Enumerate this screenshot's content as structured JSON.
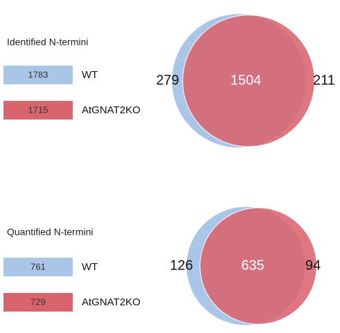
{
  "chart_data": [
    {
      "type": "venn",
      "title": "Identified N-termini",
      "sets": [
        {
          "name": "WT",
          "color": "#a9c5e8",
          "total": 1783
        },
        {
          "name": "AtGNAT2KO",
          "color": "#d9646e",
          "total": 1715
        }
      ],
      "only_first": 279,
      "overlap": 1504,
      "only_second": 211
    },
    {
      "type": "venn",
      "title": "Quantified N-termini",
      "sets": [
        {
          "name": "WT",
          "color": "#a9c5e8",
          "total": 761
        },
        {
          "name": "AtGNAT2KO",
          "color": "#d9646e",
          "total": 729
        }
      ],
      "only_first": 126,
      "overlap": 635,
      "only_second": 94
    }
  ]
}
